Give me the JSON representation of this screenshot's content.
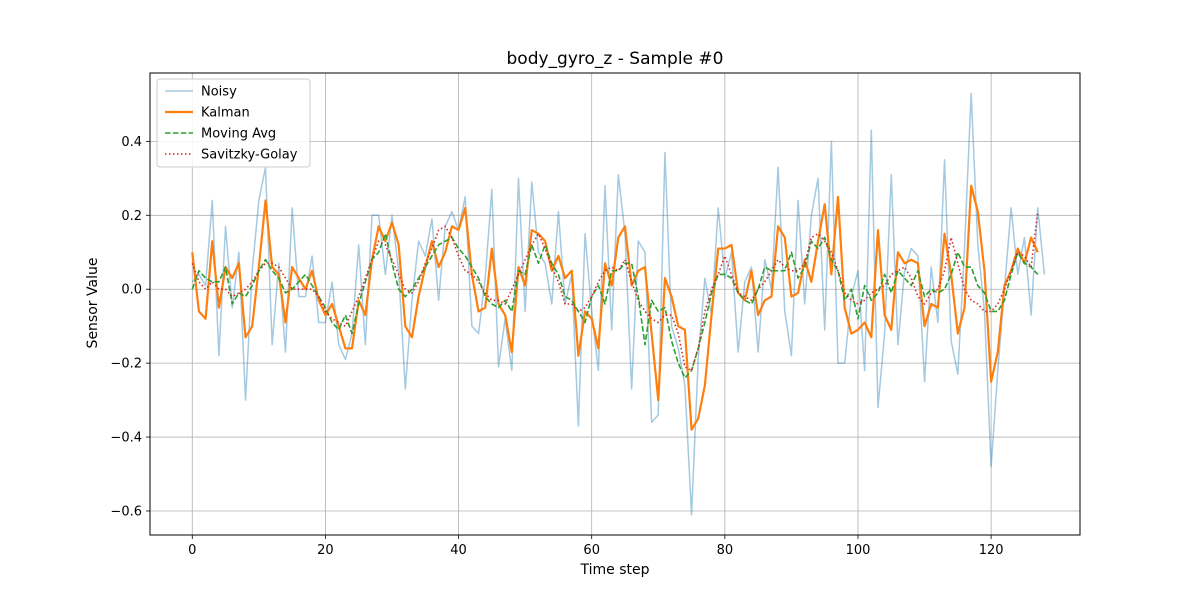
{
  "chart_data": {
    "type": "line",
    "title": "body_gyro_z - Sample #0",
    "xlabel": "Time step",
    "ylabel": "Sensor Value",
    "xlim": [
      -6.35,
      133.35
    ],
    "ylim": [
      -0.665,
      0.585
    ],
    "xticks": [
      0,
      20,
      40,
      60,
      80,
      100,
      120
    ],
    "yticks": [
      -0.6,
      -0.4,
      -0.2,
      0.0,
      0.2,
      0.4
    ],
    "ytick_labels": [
      "−0.6",
      "−0.4",
      "−0.2",
      "0.0",
      "0.2",
      "0.4"
    ],
    "grid": true,
    "legend": "upper-left",
    "series": [
      {
        "name": "Noisy",
        "color": "#1f77b4",
        "style": "solid",
        "values": [
          0.02,
          0.04,
          0.01,
          0.24,
          -0.18,
          0.17,
          -0.05,
          0.1,
          -0.3,
          0.05,
          0.24,
          0.33,
          -0.15,
          0.07,
          -0.17,
          0.22,
          -0.02,
          -0.02,
          0.09,
          -0.09,
          -0.09,
          0.02,
          -0.15,
          -0.19,
          -0.12,
          0.12,
          -0.15,
          0.2,
          0.2,
          0.04,
          0.2,
          0.05,
          -0.27,
          -0.03,
          0.13,
          0.09,
          0.19,
          -0.03,
          0.17,
          0.21,
          0.16,
          0.25,
          -0.1,
          -0.12,
          0.03,
          0.27,
          -0.21,
          -0.08,
          -0.22,
          0.3,
          -0.06,
          0.29,
          0.1,
          0.07,
          -0.04,
          0.21,
          -0.04,
          0.04,
          -0.37,
          0.15,
          -0.06,
          -0.22,
          0.28,
          -0.11,
          0.31,
          0.15,
          -0.27,
          0.13,
          0.1,
          -0.36,
          -0.34,
          0.37,
          -0.1,
          -0.16,
          -0.26,
          -0.61,
          -0.19,
          0.03,
          -0.07,
          0.22,
          0.03,
          0.1,
          -0.17,
          0.02,
          0.06,
          -0.17,
          0.08,
          0.0,
          0.33,
          -0.06,
          -0.18,
          0.24,
          -0.04,
          0.2,
          0.3,
          -0.11,
          0.4,
          -0.2,
          -0.2,
          -0.02,
          0.05,
          -0.22,
          0.43,
          -0.32,
          -0.12,
          0.31,
          -0.15,
          0.05,
          0.11,
          0.09,
          -0.25,
          0.06,
          -0.09,
          0.35,
          -0.14,
          -0.23,
          0.11,
          0.53,
          0.12,
          -0.06,
          -0.48,
          -0.22,
          0.0,
          0.22,
          0.04,
          0.14,
          -0.07,
          0.22,
          0.04
        ]
      },
      {
        "name": "Kalman",
        "color": "#ff7f0e",
        "style": "solid",
        "values": [
          0.1,
          -0.06,
          -0.08,
          0.13,
          -0.05,
          0.06,
          0.03,
          0.07,
          -0.13,
          -0.1,
          0.06,
          0.24,
          0.06,
          0.04,
          -0.09,
          0.06,
          0.03,
          0.0,
          0.05,
          -0.03,
          -0.07,
          -0.04,
          -0.1,
          -0.16,
          -0.16,
          -0.03,
          -0.07,
          0.08,
          0.17,
          0.13,
          0.18,
          0.12,
          -0.1,
          -0.13,
          -0.02,
          0.06,
          0.13,
          0.06,
          0.1,
          0.17,
          0.16,
          0.22,
          0.04,
          -0.06,
          -0.05,
          0.11,
          -0.04,
          -0.07,
          -0.17,
          0.06,
          0.01,
          0.16,
          0.15,
          0.13,
          0.05,
          0.09,
          0.03,
          0.05,
          -0.18,
          -0.06,
          -0.08,
          -0.16,
          0.07,
          0.01,
          0.14,
          0.17,
          0.01,
          0.05,
          0.06,
          -0.12,
          -0.3,
          0.03,
          -0.02,
          -0.1,
          -0.11,
          -0.38,
          -0.35,
          -0.26,
          -0.07,
          0.11,
          0.11,
          0.12,
          -0.01,
          -0.03,
          0.05,
          -0.07,
          -0.03,
          -0.02,
          0.17,
          0.14,
          -0.02,
          -0.01,
          0.08,
          0.02,
          0.13,
          0.23,
          0.04,
          0.25,
          -0.05,
          -0.12,
          -0.11,
          -0.09,
          -0.13,
          0.16,
          -0.07,
          -0.11,
          0.1,
          0.07,
          0.08,
          0.07,
          -0.1,
          -0.04,
          -0.05,
          0.15,
          0.04,
          -0.12,
          -0.05,
          0.28,
          0.21,
          0.05,
          -0.25,
          -0.17,
          0.01,
          0.05,
          0.11,
          0.07,
          0.14,
          0.1
        ]
      },
      {
        "name": "Moving Avg",
        "color": "#2ca02c",
        "style": "dashed",
        "values": [
          0.0,
          0.05,
          0.03,
          0.02,
          0.02,
          0.06,
          -0.04,
          -0.01,
          -0.02,
          0.01,
          0.05,
          0.08,
          0.05,
          0.03,
          -0.01,
          0.0,
          0.02,
          0.04,
          0.01,
          -0.02,
          -0.05,
          -0.09,
          -0.11,
          -0.07,
          -0.12,
          -0.04,
          0.02,
          0.08,
          0.1,
          0.15,
          0.07,
          0.0,
          -0.02,
          0.0,
          0.03,
          0.06,
          0.09,
          0.12,
          0.13,
          0.14,
          0.11,
          0.09,
          0.06,
          0.03,
          -0.02,
          -0.04,
          -0.05,
          -0.03,
          -0.06,
          0.05,
          0.04,
          0.12,
          0.07,
          0.12,
          0.07,
          0.04,
          -0.02,
          -0.03,
          -0.06,
          -0.09,
          -0.02,
          0.01,
          -0.04,
          0.05,
          0.05,
          0.07,
          0.07,
          -0.02,
          -0.15,
          -0.03,
          -0.06,
          -0.05,
          -0.14,
          -0.2,
          -0.24,
          -0.22,
          -0.16,
          -0.09,
          -0.01,
          0.04,
          0.04,
          0.03,
          -0.01,
          -0.03,
          -0.04,
          0.0,
          0.06,
          0.05,
          0.05,
          0.05,
          0.1,
          0.03,
          0.06,
          0.13,
          0.11,
          0.14,
          0.08,
          0.05,
          -0.03,
          0.0,
          -0.08,
          0.01,
          -0.03,
          -0.01,
          0.04,
          -0.01,
          0.05,
          0.03,
          0.01,
          0.05,
          -0.02,
          0.0,
          -0.01,
          0.0,
          0.04,
          0.1,
          0.06,
          0.06,
          0.01,
          -0.01,
          -0.06,
          -0.06,
          -0.03,
          0.04,
          0.1,
          0.07,
          0.06,
          0.04
        ]
      },
      {
        "name": "Savitzky-Golay",
        "color": "#d62728",
        "style": "dotted",
        "values": [
          0.07,
          0.02,
          0.0,
          0.02,
          0.0,
          0.0,
          -0.02,
          -0.01,
          0.0,
          0.02,
          0.05,
          0.07,
          0.07,
          0.06,
          0.03,
          0.0,
          0.0,
          0.0,
          0.0,
          -0.02,
          -0.06,
          -0.08,
          -0.09,
          -0.1,
          -0.06,
          -0.02,
          0.03,
          0.08,
          0.13,
          0.12,
          0.08,
          0.04,
          0.0,
          -0.01,
          0.02,
          0.07,
          0.11,
          0.16,
          0.17,
          0.14,
          0.09,
          0.05,
          0.04,
          0.02,
          -0.01,
          -0.03,
          -0.03,
          -0.04,
          0.0,
          0.04,
          0.08,
          0.12,
          0.15,
          0.11,
          0.06,
          0.02,
          -0.04,
          -0.04,
          -0.06,
          -0.05,
          -0.02,
          0.02,
          0.05,
          0.06,
          0.05,
          0.08,
          0.02,
          -0.03,
          -0.06,
          -0.08,
          -0.09,
          -0.07,
          -0.07,
          -0.12,
          -0.21,
          -0.22,
          -0.16,
          -0.06,
          0.0,
          0.04,
          0.09,
          0.04,
          -0.01,
          -0.02,
          -0.03,
          0.0,
          0.02,
          0.05,
          0.08,
          0.06,
          0.05,
          0.05,
          0.07,
          0.14,
          0.15,
          0.13,
          0.1,
          0.05,
          -0.01,
          -0.03,
          -0.04,
          -0.03,
          -0.01,
          0.0,
          0.01,
          0.04,
          0.05,
          0.06,
          0.03,
          -0.02,
          -0.04,
          -0.01,
          0.0,
          0.05,
          0.14,
          0.07,
          0.0,
          -0.03,
          -0.04,
          -0.06,
          -0.06,
          -0.04,
          0.0,
          0.05,
          0.1,
          0.09,
          0.06,
          0.21
        ]
      }
    ]
  }
}
